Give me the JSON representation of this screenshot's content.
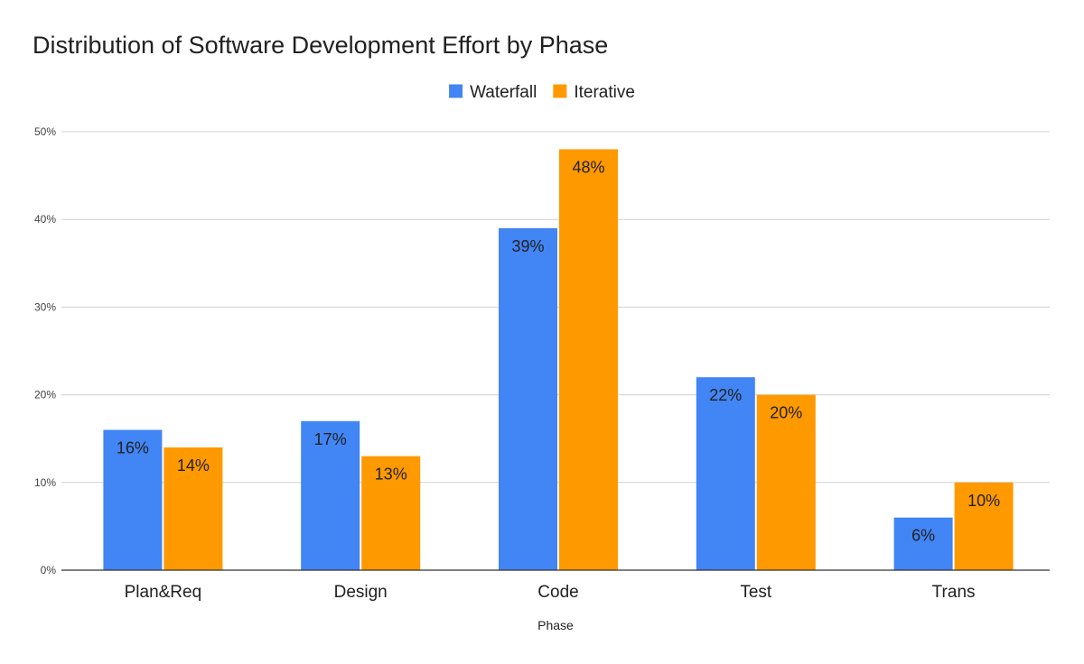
{
  "chart_data": {
    "type": "bar",
    "title": "Distribution of Software Development Effort by Phase",
    "xlabel": "Phase",
    "ylabel": "",
    "categories": [
      "Plan&Req",
      "Design",
      "Code",
      "Test",
      "Trans"
    ],
    "series": [
      {
        "name": "Waterfall",
        "color": "#4285F4",
        "values": [
          16,
          17,
          39,
          22,
          6
        ],
        "labels": [
          "16%",
          "17%",
          "39%",
          "22%",
          "6%"
        ]
      },
      {
        "name": "Iterative",
        "color": "#FF9900",
        "values": [
          14,
          13,
          48,
          20,
          10
        ],
        "labels": [
          "14%",
          "13%",
          "48%",
          "20%",
          "10%"
        ]
      }
    ],
    "ylim": [
      0,
      50
    ],
    "yticks": [
      0,
      10,
      20,
      30,
      40,
      50
    ],
    "ytick_labels": [
      "0%",
      "10%",
      "20%",
      "30%",
      "40%",
      "50%"
    ],
    "grid": true,
    "legend_position": "top-center"
  }
}
